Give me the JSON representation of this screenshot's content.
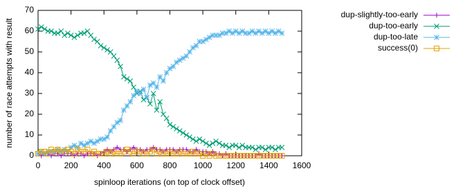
{
  "chart_data": {
    "type": "line",
    "xlabel": "spinloop iterations (on top of clock offset)",
    "ylabel": "number of race attempts with result",
    "x": [
      0,
      20,
      40,
      60,
      80,
      100,
      120,
      140,
      160,
      180,
      200,
      220,
      240,
      260,
      280,
      300,
      320,
      340,
      360,
      380,
      400,
      420,
      440,
      460,
      480,
      500,
      520,
      540,
      560,
      580,
      600,
      620,
      640,
      660,
      680,
      700,
      720,
      740,
      760,
      780,
      800,
      820,
      840,
      860,
      880,
      900,
      920,
      940,
      960,
      980,
      1000,
      1020,
      1040,
      1060,
      1080,
      1100,
      1120,
      1140,
      1160,
      1180,
      1200,
      1220,
      1240,
      1260,
      1280,
      1300,
      1320,
      1340,
      1360,
      1380,
      1400,
      1420,
      1440,
      1460,
      1480
    ],
    "xlim": [
      0,
      1600
    ],
    "xticks": [
      0,
      200,
      400,
      600,
      800,
      1000,
      1200,
      1400,
      1600
    ],
    "ylim": [
      0,
      70
    ],
    "yticks": [
      0,
      10,
      20,
      30,
      40,
      50,
      60,
      70
    ],
    "legend": "top-right",
    "series": [
      {
        "name": "dup-slightly-too-early",
        "color": "#9400d3",
        "marker": "plus",
        "values": [
          1,
          0,
          1,
          1,
          0,
          1,
          1,
          0,
          1,
          1,
          1,
          0,
          1,
          1,
          0,
          1,
          1,
          1,
          0,
          1,
          2,
          3,
          2,
          3,
          4,
          3,
          3,
          2,
          3,
          4,
          3,
          3,
          2,
          3,
          3,
          4,
          3,
          3,
          2,
          3,
          3,
          3,
          2,
          3,
          3,
          3,
          2,
          2,
          3,
          2,
          2,
          2,
          1,
          2,
          1,
          1,
          0,
          1,
          0,
          0,
          0,
          0,
          0,
          0,
          0,
          0,
          0,
          1,
          0,
          0,
          0,
          0,
          0,
          0,
          0
        ]
      },
      {
        "name": "dup-too-early",
        "color": "#009e73",
        "marker": "cross",
        "values": [
          61,
          62,
          61,
          60,
          60,
          59,
          59,
          60,
          58,
          59,
          58,
          57,
          58,
          59,
          59,
          60,
          58,
          56,
          55,
          53,
          52,
          51,
          50,
          48,
          46,
          43,
          38,
          37,
          36,
          33,
          30,
          31,
          27,
          28,
          25,
          30,
          22,
          26,
          20,
          18,
          15,
          14,
          13,
          12,
          11,
          10,
          9,
          8,
          7,
          8,
          7,
          6,
          5,
          6,
          7,
          6,
          5,
          5,
          4,
          5,
          5,
          4,
          5,
          4,
          4,
          4,
          3,
          4,
          4,
          3,
          4,
          4,
          3,
          4,
          4
        ]
      },
      {
        "name": "dup-too-late",
        "color": "#56b4e9",
        "marker": "star",
        "values": [
          1,
          2,
          1,
          2,
          2,
          2,
          3,
          2,
          3,
          2,
          4,
          5,
          4,
          6,
          5,
          6,
          7,
          6,
          7,
          8,
          8,
          9,
          12,
          14,
          16,
          17,
          22,
          24,
          26,
          29,
          31,
          30,
          32,
          28,
          34,
          35,
          33,
          38,
          36,
          40,
          42,
          43,
          45,
          46,
          47,
          48,
          50,
          52,
          53,
          55,
          55,
          56,
          57,
          58,
          58,
          58,
          59,
          59,
          60,
          59,
          60,
          59,
          60,
          59,
          59,
          60,
          59,
          60,
          59,
          60,
          59,
          60,
          59,
          60,
          59
        ]
      },
      {
        "name": "success(0)",
        "color": "#e69f00",
        "marker": "square",
        "values": [
          1,
          2,
          2,
          1,
          3,
          2,
          3,
          2,
          2,
          3,
          2,
          1,
          3,
          2,
          2,
          3,
          1,
          2,
          1,
          1,
          1,
          2,
          1,
          2,
          1,
          1,
          2,
          3,
          2,
          1,
          2,
          2,
          1,
          1,
          2,
          3,
          1,
          2,
          1,
          1,
          2,
          1,
          1,
          2,
          1,
          1,
          1,
          2,
          1,
          1,
          0,
          1,
          0,
          1,
          0,
          0,
          0,
          0,
          0,
          0,
          0,
          0,
          0,
          0,
          0,
          0,
          0,
          0,
          0,
          0,
          0,
          0,
          0,
          0,
          0
        ]
      }
    ]
  }
}
